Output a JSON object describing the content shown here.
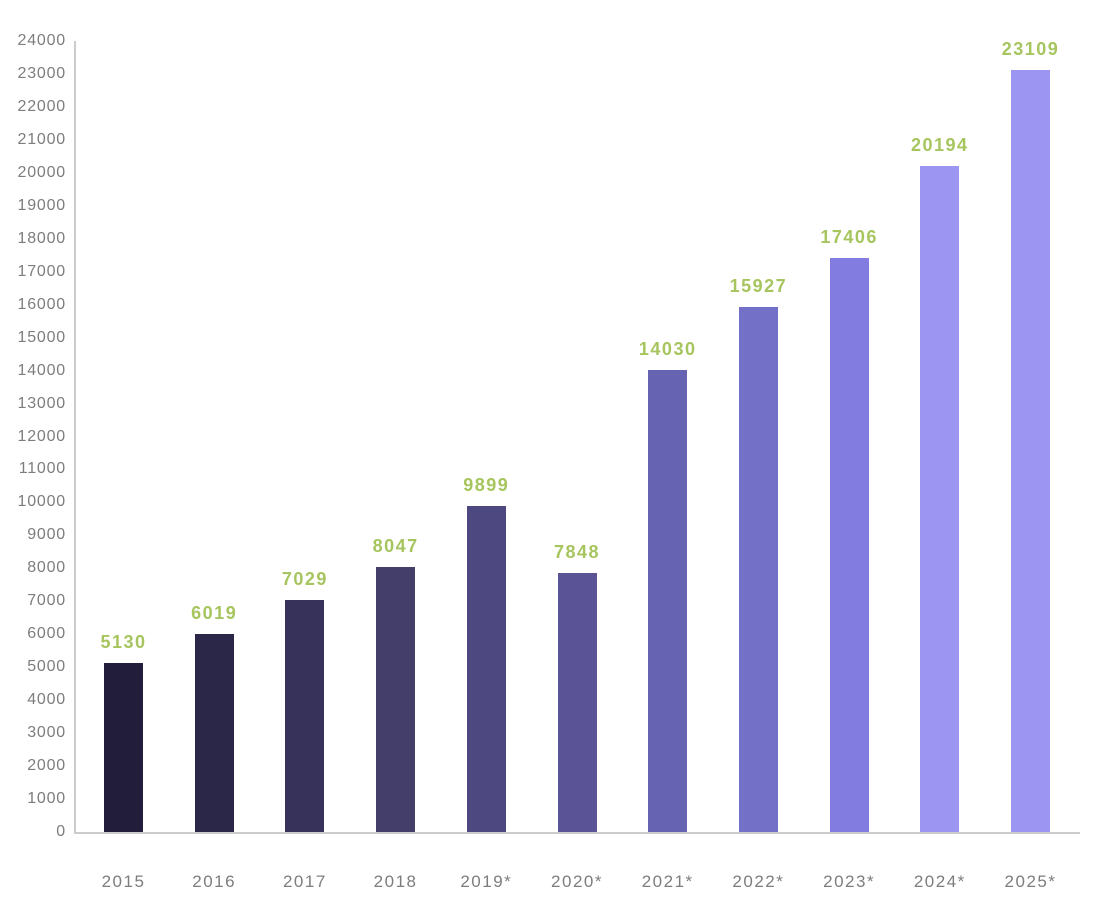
{
  "chart_data": {
    "type": "bar",
    "title": "",
    "xlabel": "",
    "ylabel": "",
    "categories": [
      "2015",
      "2016",
      "2017",
      "2018",
      "2019*",
      "2020*",
      "2021*",
      "2022*",
      "2023*",
      "2024*",
      "2025*"
    ],
    "values": [
      5130,
      6019,
      7029,
      8047,
      9899,
      7848,
      14030,
      15927,
      17406,
      20194,
      23109
    ],
    "bar_colors": [
      "#211d3a",
      "#2b2749",
      "#363259",
      "#443e6a",
      "#4d4880",
      "#5a5497",
      "#6663b2",
      "#7370c8",
      "#827ce0",
      "#9c95f1",
      "#9c95f1"
    ],
    "value_label_color": "#a7c55f",
    "axis_label_color": "#7d7d7d",
    "axis_line_color": "#cccccc",
    "y_axis": {
      "min": 0,
      "max": 24000,
      "step": 1000,
      "tick_labels": [
        "0",
        "1000",
        "2000",
        "3000",
        "4000",
        "5000",
        "6000",
        "7000",
        "8000",
        "9000",
        "10000",
        "11000",
        "12000",
        "13000",
        "14000",
        "15000",
        "16000",
        "17000",
        "18000",
        "19000",
        "20000",
        "21000",
        "22000",
        "23000",
        "24000"
      ]
    },
    "grid": false,
    "legend": false,
    "data_labels_shown": true
  }
}
